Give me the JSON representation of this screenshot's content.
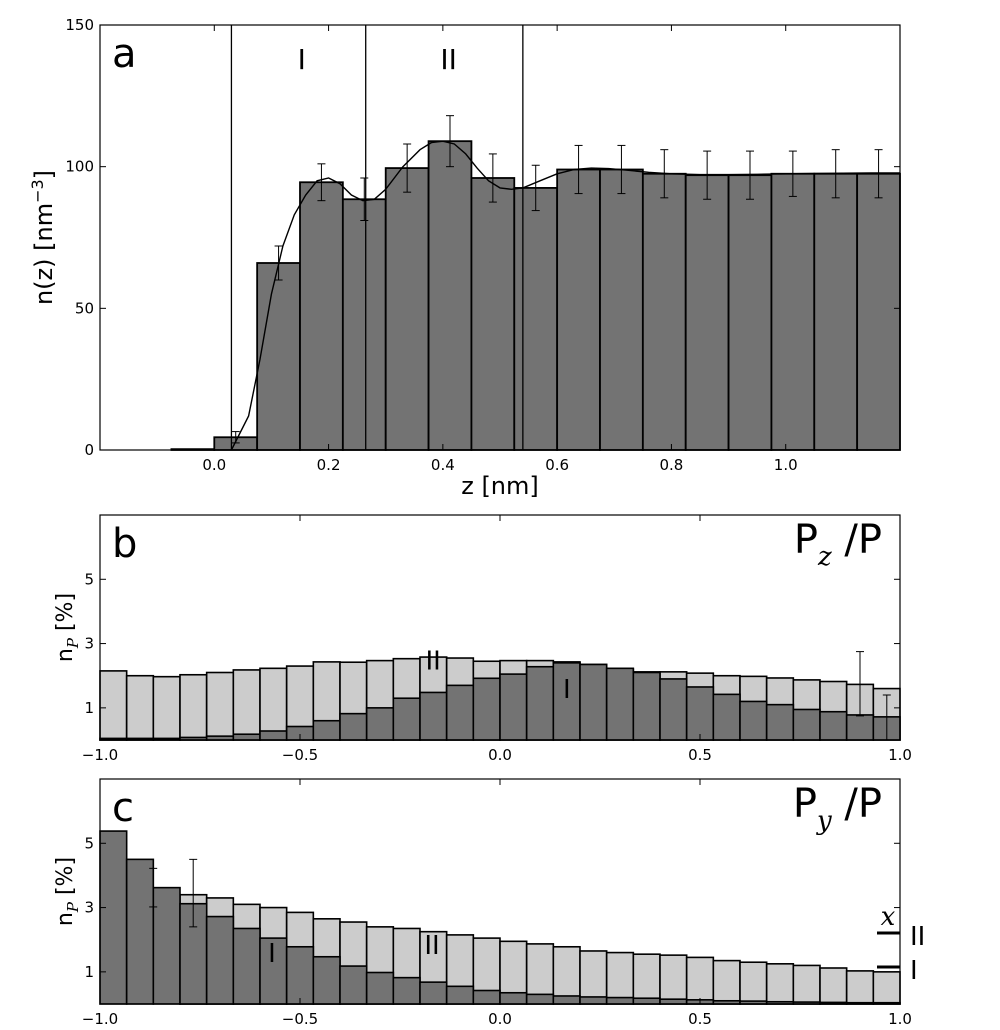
{
  "colors": {
    "dark": "#737373",
    "light": "#cccccc",
    "line": "#000000"
  },
  "chart_data": [
    {
      "type": "bar",
      "panel": "a",
      "panel_label": "a",
      "xlabel": "z [nm]",
      "ylabel": "n(z) [nm",
      "ylabel_exp": "−3",
      "ylabel_close": "]",
      "xlim": [
        -0.2,
        1.2
      ],
      "ylim": [
        0,
        150
      ],
      "xticks": [
        0.0,
        0.2,
        0.4,
        0.6,
        0.8,
        1.0
      ],
      "xtick_labels": [
        "0.0",
        "0.2",
        "0.4",
        "0.6",
        "0.8",
        "1.0"
      ],
      "yticks": [
        0,
        50,
        100,
        150
      ],
      "ytick_labels": [
        "0",
        "50",
        "100",
        "150"
      ],
      "bin_width": 0.075,
      "bin_edges_start": -0.075,
      "values": [
        0.3,
        4.5,
        66,
        94.5,
        88.5,
        99.5,
        109,
        96,
        92.5,
        99,
        99,
        97.5,
        97,
        97,
        97.5,
        97.5,
        97.5
      ],
      "errors": [
        null,
        2,
        6,
        6.5,
        7.5,
        8.5,
        9,
        8.5,
        8,
        8.5,
        8.5,
        8.5,
        8.5,
        8.5,
        8,
        8.5,
        8.5
      ],
      "fit_curve": {
        "x": [
          0.03,
          0.06,
          0.08,
          0.1,
          0.12,
          0.14,
          0.16,
          0.18,
          0.2,
          0.22,
          0.24,
          0.26,
          0.28,
          0.3,
          0.33,
          0.36,
          0.38,
          0.4,
          0.42,
          0.44,
          0.46,
          0.48,
          0.5,
          0.52,
          0.54,
          0.57,
          0.6,
          0.63,
          0.66,
          0.69,
          0.72,
          0.76,
          0.8,
          0.85,
          0.9,
          0.95,
          1.0,
          1.05,
          1.1,
          1.15,
          1.2
        ],
        "y": [
          0,
          12,
          32,
          55,
          72,
          83,
          90,
          95,
          96,
          94,
          90,
          88,
          88.5,
          92,
          100,
          106,
          108.5,
          109,
          108,
          104.5,
          99.5,
          95,
          92.5,
          92,
          92.5,
          95,
          97.5,
          99,
          99.5,
          99.3,
          98.8,
          98,
          97.5,
          97.2,
          97.2,
          97.3,
          97.5,
          97.6,
          97.7,
          97.8,
          97.8
        ]
      },
      "vlines": [
        0.03,
        0.265,
        0.54
      ],
      "region_labels": [
        {
          "text": "I",
          "x": 0.153
        },
        {
          "text": "II",
          "x": 0.41
        }
      ]
    },
    {
      "type": "bar",
      "panel": "b",
      "panel_label": "b",
      "title_main": "P",
      "title_sub": "z",
      "title_tail": "/P",
      "ylabel": "n",
      "ylabel_sub": "P",
      "ylabel_tail": " [%]",
      "xlim": [
        -1.0,
        1.0
      ],
      "ylim": [
        0,
        7
      ],
      "xticks": [
        -1.0,
        -0.5,
        0.0,
        0.5,
        1.0
      ],
      "xtick_labels": [
        "−1.0",
        "−0.5",
        "0.0",
        "0.5",
        "1.0"
      ],
      "yticks": [
        1,
        3,
        5
      ],
      "ytick_labels": [
        "1",
        "3",
        "5"
      ],
      "bins": 30,
      "series": [
        {
          "name": "II",
          "values": [
            2.15,
            2.0,
            1.97,
            2.03,
            2.1,
            2.18,
            2.23,
            2.3,
            2.43,
            2.42,
            2.47,
            2.53,
            2.58,
            2.55,
            2.45,
            2.47,
            2.47,
            2.43,
            2.35,
            2.2,
            2.12,
            2.12,
            2.08,
            2.0,
            1.98,
            1.93,
            1.87,
            1.82,
            1.73,
            1.6
          ]
        },
        {
          "name": "I",
          "values": [
            0.05,
            0.05,
            0.05,
            0.08,
            0.12,
            0.18,
            0.28,
            0.42,
            0.6,
            0.82,
            1.0,
            1.3,
            1.48,
            1.7,
            1.92,
            2.05,
            2.28,
            2.4,
            2.35,
            2.23,
            2.1,
            1.9,
            1.65,
            1.42,
            1.2,
            1.1,
            0.95,
            0.88,
            0.78,
            0.72
          ]
        }
      ],
      "errorbars": [
        {
          "x": 0.9,
          "y": 1.75,
          "err": 1.0
        },
        {
          "x": 0.967,
          "y": 0.7,
          "err": 0.7
        }
      ],
      "region_labels": [
        {
          "text": "II",
          "x": -0.167,
          "y": 2.2
        },
        {
          "text": "I",
          "x": 0.167,
          "y": 1.3
        }
      ]
    },
    {
      "type": "bar",
      "panel": "c",
      "panel_label": "c",
      "title_main": "P",
      "title_sub": "y",
      "title_tail": "/P",
      "ylabel": "n",
      "ylabel_sub": "P",
      "ylabel_tail": " [%]",
      "xlim": [
        -1.0,
        1.0
      ],
      "ylim": [
        0,
        7
      ],
      "xticks": [
        -1.0,
        -0.5,
        0.0,
        0.5,
        1.0
      ],
      "xtick_labels": [
        "−1.0",
        "−0.5",
        "0.0",
        "0.5",
        "1.0"
      ],
      "yticks": [
        1,
        3,
        5
      ],
      "ytick_labels": [
        "1",
        "3",
        "5"
      ],
      "bins": 30,
      "series": [
        {
          "name": "II",
          "values": [
            null,
            null,
            null,
            3.4,
            3.3,
            3.1,
            3.0,
            2.85,
            2.65,
            2.55,
            2.4,
            2.35,
            2.25,
            2.15,
            2.05,
            1.95,
            1.87,
            1.78,
            1.65,
            1.6,
            1.55,
            1.52,
            1.45,
            1.35,
            1.3,
            1.25,
            1.2,
            1.12,
            1.03,
            1.0
          ]
        },
        {
          "name": "I",
          "values": [
            5.38,
            4.5,
            3.62,
            3.12,
            2.72,
            2.35,
            2.05,
            1.78,
            1.47,
            1.18,
            0.98,
            0.82,
            0.68,
            0.55,
            0.42,
            0.35,
            0.3,
            0.25,
            0.22,
            0.2,
            0.18,
            0.15,
            0.13,
            0.1,
            0.09,
            0.07,
            0.06,
            0.05,
            0.04,
            0.04
          ]
        }
      ],
      "errorbars": [
        {
          "x": -0.867,
          "y": 3.62,
          "err": 0.6
        },
        {
          "x": -0.767,
          "y": 3.45,
          "err": 1.05
        }
      ],
      "region_labels": [
        {
          "text": "I",
          "x": -0.57,
          "y": 1.3
        },
        {
          "text": "II",
          "x": -0.17,
          "y": 1.55
        }
      ],
      "legend": {
        "symbol": "x",
        "entries": [
          {
            "label": "II",
            "series": "II"
          },
          {
            "label": "I",
            "series": "I"
          }
        ],
        "placement": "right"
      }
    }
  ]
}
